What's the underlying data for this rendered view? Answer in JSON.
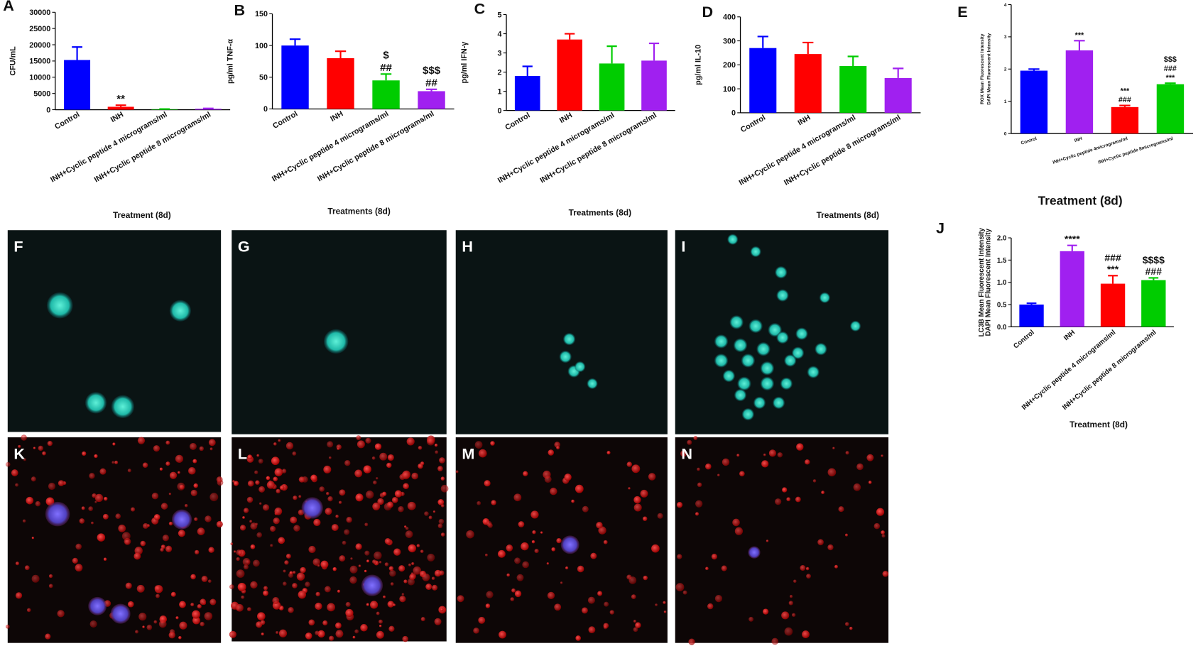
{
  "chart_data": [
    {
      "type": "bar",
      "panel": "A",
      "ylabel": "CFU/mL",
      "xlabel": "Treatment (8d)",
      "categories": [
        "Control",
        "INH",
        "INH+Cyclic peptide 4 micrograms/ml",
        "INH+Cyclic peptide 8 micrograms/ml"
      ],
      "values": [
        15300,
        900,
        150,
        300
      ],
      "errors": [
        4000,
        500,
        50,
        100
      ],
      "colors": [
        "#0000ff",
        "#ff0000",
        "#00cc00",
        "#a020f0"
      ],
      "ylim": [
        0,
        30000
      ],
      "yticks": [
        0,
        5000,
        10000,
        15000,
        20000,
        25000,
        30000
      ],
      "annotations": [
        {
          "category": "INH",
          "lines": [
            "**"
          ]
        }
      ]
    },
    {
      "type": "bar",
      "panel": "B",
      "ylabel": "pg/ml TNF-α",
      "xlabel": "Treatments (8d)",
      "categories": [
        "Control",
        "INH",
        "INH+Cyclic peptide 4 micrograms/ml",
        "INH+Cyclic peptide 8 micrograms/ml"
      ],
      "values": [
        100,
        80,
        45,
        28
      ],
      "errors": [
        10,
        11,
        10,
        3
      ],
      "colors": [
        "#0000ff",
        "#ff0000",
        "#00cc00",
        "#a020f0"
      ],
      "ylim": [
        0,
        150
      ],
      "yticks": [
        0,
        50,
        100,
        150
      ],
      "annotations": [
        {
          "category": "INH+Cyclic peptide 4 micrograms/ml",
          "lines": [
            "$",
            "##"
          ]
        },
        {
          "category": "INH+Cyclic peptide 8 micrograms/ml",
          "lines": [
            "$$$",
            "##"
          ]
        }
      ]
    },
    {
      "type": "bar",
      "panel": "C",
      "ylabel": "pg/ml IFN-γ",
      "xlabel": "Treatments (8d)",
      "categories": [
        "Control",
        "INH",
        "INH+Cyclic peptide 4 micrograms/ml",
        "INH+Cyclic peptide 8 micrograms/ml"
      ],
      "values": [
        1.8,
        3.7,
        2.45,
        2.6
      ],
      "errors": [
        0.5,
        0.3,
        0.9,
        0.9
      ],
      "colors": [
        "#0000ff",
        "#ff0000",
        "#00cc00",
        "#a020f0"
      ],
      "ylim": [
        0,
        5
      ],
      "yticks": [
        0,
        1,
        2,
        3,
        4,
        5
      ]
    },
    {
      "type": "bar",
      "panel": "D",
      "ylabel": "pg/ml IL-10",
      "xlabel": "Treatments (8d)",
      "categories": [
        "Control",
        "INH",
        "INH+Cyclic peptide 4 micrograms/ml",
        "INH+Cyclic peptide 8 micrograms/ml"
      ],
      "values": [
        270,
        245,
        195,
        145
      ],
      "errors": [
        48,
        48,
        40,
        40
      ],
      "colors": [
        "#0000ff",
        "#ff0000",
        "#00cc00",
        "#a020f0"
      ],
      "ylim": [
        0,
        400
      ],
      "yticks": [
        0,
        100,
        200,
        300,
        400
      ]
    },
    {
      "type": "bar",
      "panel": "E",
      "ylabel": [
        "ROX Mean Fluorescent Intensity",
        "DAPI Mean Fluorescent Intensity"
      ],
      "xlabel": "Treatment (8d)",
      "categories": [
        "Control",
        "INH",
        "INH+Cyclic peptide 4micrograms/ml",
        "INH+Cyclic peptide 8micrograms/ml"
      ],
      "values": [
        1.95,
        2.58,
        0.82,
        1.53
      ],
      "errors": [
        0.05,
        0.3,
        0.05,
        0.03
      ],
      "colors": [
        "#0000ff",
        "#a020f0",
        "#ff0000",
        "#00cc00"
      ],
      "ylim": [
        0,
        4
      ],
      "yticks": [
        0,
        1,
        2,
        3,
        4
      ],
      "annotations": [
        {
          "category": "INH",
          "lines": [
            "***"
          ]
        },
        {
          "category": "INH+Cyclic peptide 4micrograms/ml",
          "lines": [
            "***",
            "###"
          ]
        },
        {
          "category": "INH+Cyclic peptide 8micrograms/ml",
          "lines": [
            "$$$",
            "###",
            "***"
          ]
        }
      ]
    },
    {
      "type": "bar",
      "panel": "J",
      "ylabel": [
        "LC3B Mean Fluorescent Intensity",
        "DAPI Mean Fluorescent Intensity"
      ],
      "xlabel": "Treatment (8d)",
      "categories": [
        "Control",
        "INH",
        "INH+Cyclic peptide 4 micrograms/ml",
        "INH+Cyclic peptide 8 micrograms/ml"
      ],
      "values": [
        0.5,
        1.7,
        0.97,
        1.05
      ],
      "errors": [
        0.03,
        0.13,
        0.18,
        0.05
      ],
      "colors": [
        "#0000ff",
        "#a020f0",
        "#ff0000",
        "#00cc00"
      ],
      "ylim": [
        0,
        2.0
      ],
      "yticks": [
        {
          "value": 0,
          "label": "0.0"
        },
        0.5,
        {
          "value": 1,
          "label": "1.0"
        },
        1.5,
        {
          "value": 2,
          "label": "2.0"
        }
      ],
      "annotations": [
        {
          "category": "INH",
          "lines": [
            "****"
          ]
        },
        {
          "category": "INH+Cyclic peptide 4 micrograms/ml",
          "lines": [
            "###",
            "***"
          ]
        },
        {
          "category": "INH+Cyclic peptide 8 micrograms/ml",
          "lines": [
            "$$$$",
            "###"
          ]
        }
      ]
    }
  ],
  "image_panels": [
    "F",
    "G",
    "H",
    "I",
    "K",
    "L",
    "M",
    "N"
  ]
}
